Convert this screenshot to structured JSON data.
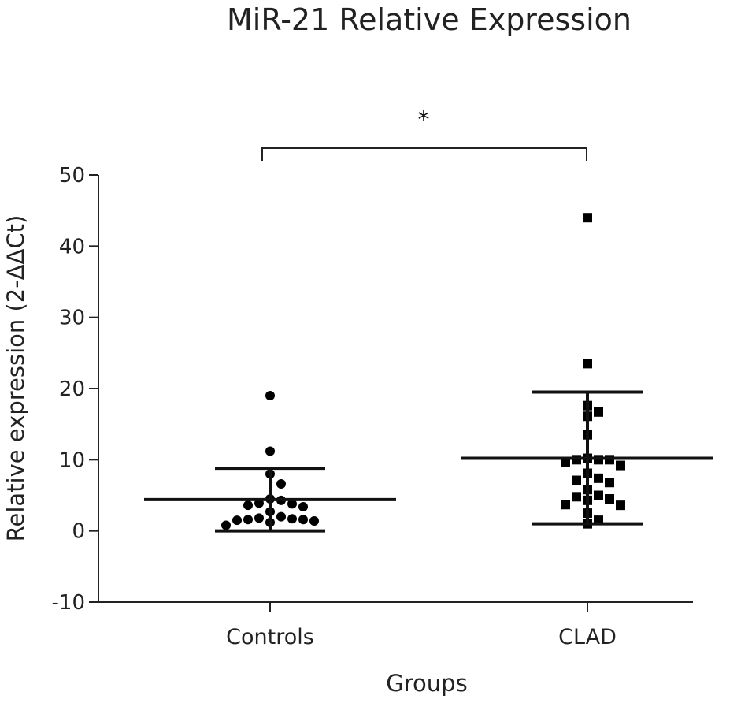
{
  "chart_data": {
    "type": "scatter",
    "title": "MiR-21 Relative Expression",
    "xlabel": "Groups",
    "ylabel": "Relative expression (2-ΔΔCt)",
    "ylim": [
      -10,
      50
    ],
    "yticks": [
      -10,
      0,
      10,
      20,
      30,
      40,
      50
    ],
    "categories": [
      "Controls",
      "CLAD"
    ],
    "significance": "*",
    "groups": [
      {
        "category": "Controls",
        "marker": "circle",
        "mean": 4.4,
        "sd_upper": 8.8,
        "sd_lower": 0.0,
        "values": [
          19.0,
          11.2,
          8.0,
          6.6,
          4.5,
          4.3,
          3.9,
          3.8,
          3.6,
          3.4,
          2.7,
          2.0,
          1.8,
          1.7,
          1.6,
          1.6,
          1.5,
          1.4,
          1.2,
          0.8
        ]
      },
      {
        "category": "CLAD",
        "marker": "square",
        "mean": 10.2,
        "sd_upper": 19.5,
        "sd_lower": 1.0,
        "values": [
          44.0,
          23.5,
          17.6,
          16.7,
          16.1,
          13.5,
          10.2,
          10.0,
          10.0,
          10.0,
          9.6,
          9.2,
          8.1,
          7.4,
          7.1,
          6.8,
          5.8,
          5.0,
          4.8,
          4.5,
          4.3,
          3.7,
          3.6,
          2.5,
          1.5,
          1.0
        ]
      }
    ]
  }
}
